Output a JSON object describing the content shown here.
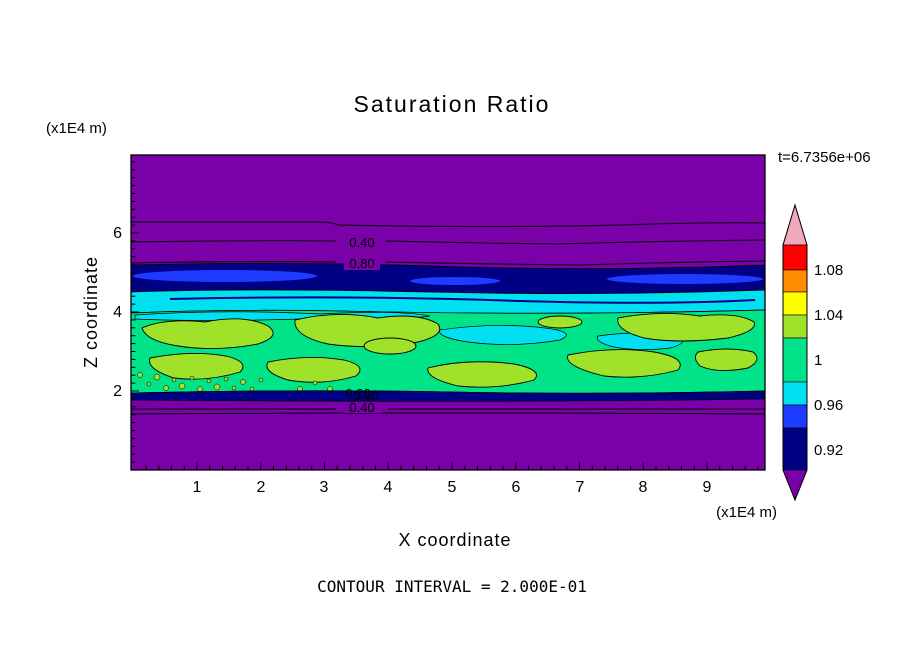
{
  "figure": {
    "title": "Saturation Ratio",
    "time_label": "t=6.7356e+06",
    "contour_interval_label": "CONTOUR INTERVAL = 2.000E-01"
  },
  "axes": {
    "x_label": "X coordinate",
    "y_label": "Z coordinate",
    "x_unit": "(x1E4 m)",
    "y_unit": "(x1E4 m)",
    "x_tick_labels": [
      "1",
      "2",
      "3",
      "4",
      "5",
      "6",
      "7",
      "8",
      "9"
    ],
    "y_tick_labels": [
      "6",
      "4",
      "2"
    ]
  },
  "colorbar": {
    "labels": [
      "1.08",
      "1.04",
      "1",
      "0.96",
      "0.92"
    ],
    "segments": [
      {
        "name": "pink",
        "color": "#F2A8BC"
      },
      {
        "name": "red",
        "color": "#FF0000"
      },
      {
        "name": "orange",
        "color": "#FF8C00"
      },
      {
        "name": "yellow",
        "color": "#FFFF00"
      },
      {
        "name": "yellow-green",
        "color": "#9FE229"
      },
      {
        "name": "green",
        "color": "#00E388"
      },
      {
        "name": "cyan",
        "color": "#00E0F0"
      },
      {
        "name": "blue",
        "color": "#1E3CFF"
      },
      {
        "name": "navy",
        "color": "#000085"
      },
      {
        "name": "purple",
        "color": "#7A00A8"
      }
    ]
  },
  "contour_labels": {
    "upper_040": "0.40",
    "upper_080": "0.80",
    "lower_020": "0.20",
    "lower_030": "0.30",
    "lower_040": "0.40"
  },
  "chart_data": {
    "type": "contour",
    "title": "Saturation Ratio",
    "xlabel": "X coordinate (x1E4 m)",
    "ylabel": "Z coordinate (x1E4 m)",
    "xlim": [
      0,
      9.9
    ],
    "ylim": [
      0,
      8
    ],
    "x_ticks": [
      1,
      2,
      3,
      4,
      5,
      6,
      7,
      8,
      9
    ],
    "y_ticks": [
      2,
      4,
      6
    ],
    "time_annotation": "t=6.7356e+06",
    "contour_interval": 0.2,
    "colorbar_levels": [
      0.92,
      0.96,
      1,
      1.04,
      1.08
    ],
    "palette": {
      "purple": "#7A00A8",
      "navy": "#000085",
      "blue": "#1E3CFF",
      "cyan": "#00E0F0",
      "green": "#00E388",
      "yellow_green": "#9FE229"
    },
    "regions": [
      {
        "z_range": [
          5.4,
          8.0
        ],
        "value": "< 0.9 (background)",
        "color": "#7A00A8"
      },
      {
        "z_range": [
          4.9,
          5.4
        ],
        "value": "~0.92 band with ~0.94 blue lenses",
        "color": "#000085"
      },
      {
        "z_range": [
          4.4,
          4.9
        ],
        "value": "~0.96 band",
        "color": "#00E0F0"
      },
      {
        "z_range": [
          2.0,
          4.4
        ],
        "value": "~1.0 band with patches up to ~1.04 and cyan lenses ~0.97",
        "color": "#00E388"
      },
      {
        "z_range": [
          1.85,
          2.0
        ],
        "value": "~0.92 thin band",
        "color": "#000085"
      },
      {
        "z_range": [
          0.0,
          1.85
        ],
        "value": "< 0.9 (background)",
        "color": "#7A00A8"
      }
    ],
    "contour_line_labels": [
      {
        "value": 0.4,
        "x": 3.55,
        "z": 5.75
      },
      {
        "value": 0.8,
        "x": 3.55,
        "z": 5.2
      },
      {
        "value": 0.2,
        "x": 3.6,
        "z": 1.95
      },
      {
        "value": 0.3,
        "x": 3.65,
        "z": 1.9
      },
      {
        "value": 0.4,
        "x": 3.6,
        "z": 1.6
      }
    ]
  }
}
